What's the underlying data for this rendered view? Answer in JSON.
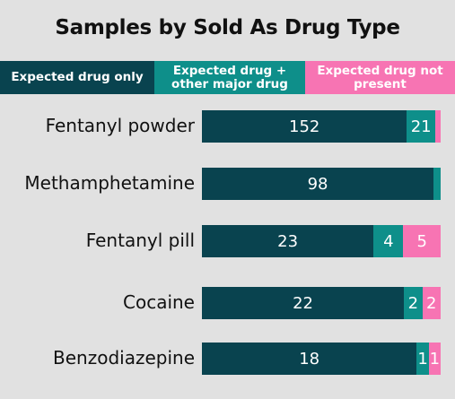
{
  "chart_data": {
    "type": "bar",
    "orientation": "horizontal",
    "stacked": true,
    "title": "Samples by Sold As Drug Type",
    "categories": [
      "Fentanyl powder",
      "Methamphetamine",
      "Fentanyl pill",
      "Cocaine",
      "Benzodiazepine"
    ],
    "series": [
      {
        "name": "Expected drug only",
        "color": "#09434f",
        "values": [
          152,
          98,
          23,
          22,
          18
        ]
      },
      {
        "name": "Expected drug + other major drug",
        "color": "#0e8f8a",
        "values": [
          21,
          3,
          4,
          2,
          1
        ]
      },
      {
        "name": "Expected drug not present",
        "color": "#f774b3",
        "values": [
          4,
          0,
          5,
          2,
          1
        ]
      }
    ],
    "show_value_labels_min": 1,
    "legend_position": "top",
    "grid": false
  }
}
